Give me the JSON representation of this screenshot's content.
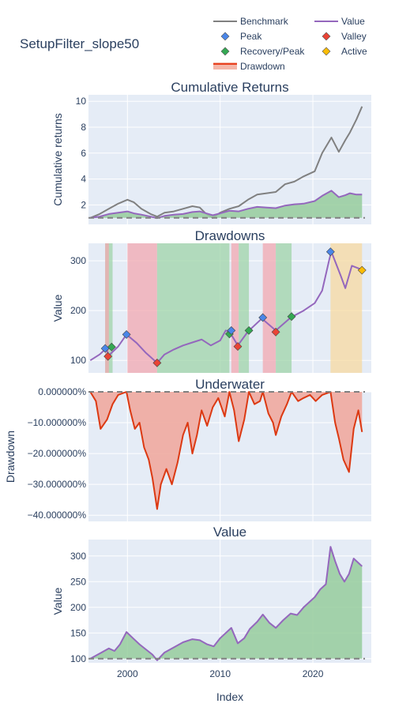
{
  "figure": {
    "title": "SetupFilter_slope50"
  },
  "legend": {
    "items": [
      {
        "label": "Benchmark",
        "kind": "line",
        "color": "#808080"
      },
      {
        "label": "Value",
        "kind": "line",
        "color": "#9467bd"
      },
      {
        "label": "Peak",
        "kind": "diamond",
        "color": "#4a86e8"
      },
      {
        "label": "Valley",
        "kind": "diamond",
        "color": "#ea4335"
      },
      {
        "label": "Recovery/Peak",
        "kind": "diamond",
        "color": "#34a853"
      },
      {
        "label": "Active",
        "kind": "diamond",
        "color": "#fbbc05"
      },
      {
        "label": "Drawdown",
        "kind": "band",
        "color": "#e8411f"
      }
    ]
  },
  "colors": {
    "plot_bg": "#e5ecf6",
    "grid": "#ffffff",
    "text": "#2a3f5f",
    "value": "#9467bd",
    "benchmark": "#808080",
    "fill_green": "#97cd9c",
    "recovery_band": "#9fd4a8",
    "drawdown_band": "#f2a8b0",
    "active_band": "#f7d9a0",
    "underwater": "#dc3912",
    "underwater_fill": "#efaaa0"
  },
  "x_axis": {
    "label": "Index",
    "ticks": [
      "2000",
      "2010",
      "2020"
    ]
  },
  "chart_data": [
    {
      "type": "line",
      "title": "Cumulative Returns",
      "ylabel": "Cumulative returns",
      "ylim": [
        0.5,
        10.5
      ],
      "yticks": [
        2,
        4,
        6,
        8,
        10
      ],
      "ytick_labels": [
        "2",
        "4",
        "6",
        "8",
        "10"
      ],
      "x": [
        1996.0,
        1997.0,
        1998.0,
        1999.0,
        2000.0,
        2000.7,
        2001.5,
        2002.5,
        2003.2,
        2004.0,
        2005.0,
        2006.0,
        2007.0,
        2007.8,
        2008.5,
        2009.2,
        2010.0,
        2011.0,
        2012.0,
        2013.0,
        2014.0,
        2015.0,
        2016.0,
        2017.0,
        2018.0,
        2019.0,
        2020.2,
        2021.0,
        2022.0,
        2022.8,
        2023.5,
        2024.0,
        2024.7,
        2025.3
      ],
      "series": [
        {
          "name": "Benchmark",
          "color": "#808080",
          "values": [
            1.0,
            1.3,
            1.7,
            2.1,
            2.4,
            2.2,
            1.7,
            1.3,
            1.1,
            1.4,
            1.5,
            1.7,
            1.9,
            1.8,
            1.3,
            1.0,
            1.4,
            1.7,
            1.9,
            2.4,
            2.8,
            2.9,
            3.0,
            3.6,
            3.8,
            4.2,
            4.6,
            6.0,
            7.2,
            6.1,
            7.0,
            7.6,
            8.6,
            9.6
          ]
        },
        {
          "name": "Value",
          "color": "#9467bd",
          "values": [
            1.0,
            1.1,
            1.3,
            1.4,
            1.5,
            1.35,
            1.25,
            1.1,
            0.98,
            1.15,
            1.25,
            1.3,
            1.45,
            1.5,
            1.35,
            1.2,
            1.35,
            1.55,
            1.5,
            1.7,
            1.85,
            1.8,
            1.75,
            1.95,
            2.05,
            2.1,
            2.3,
            2.7,
            3.1,
            2.6,
            2.75,
            2.9,
            2.8,
            2.8
          ]
        }
      ],
      "baseline": 1.0
    },
    {
      "type": "line",
      "title": "Drawdowns",
      "ylabel": "Value",
      "ylim": [
        75,
        335
      ],
      "yticks": [
        100,
        200,
        300
      ],
      "ytick_labels": [
        "100",
        "200",
        "300"
      ],
      "x": [
        1996.0,
        1997.0,
        1997.7,
        1998.0,
        1999.0,
        1999.9,
        2001.0,
        2002.0,
        2003.2,
        2004.0,
        2005.0,
        2006.0,
        2007.0,
        2008.0,
        2009.0,
        2010.0,
        2010.6,
        2011.0,
        2011.9,
        2013.0,
        2014.5,
        2016.0,
        2017.6,
        2019.0,
        2020.2,
        2021.0,
        2021.8,
        2022.0,
        2023.0,
        2023.5,
        2024.2,
        2025.3
      ],
      "series": [
        {
          "name": "Value",
          "color": "#9467bd",
          "values": [
            100,
            112,
            124,
            110,
            128,
            152,
            135,
            115,
            95,
            112,
            122,
            130,
            136,
            142,
            130,
            140,
            160,
            158,
            130,
            158,
            184,
            160,
            186,
            200,
            215,
            240,
            305,
            318,
            270,
            245,
            290,
            282
          ]
        }
      ],
      "bands": [
        {
          "kind": "recovery",
          "x0": 1997.6,
          "x1": 1998.4
        },
        {
          "kind": "drawdown",
          "x0": 1997.6,
          "x1": 1998.0
        },
        {
          "kind": "drawdown",
          "x0": 2000.0,
          "x1": 2003.2
        },
        {
          "kind": "recovery",
          "x0": 2003.2,
          "x1": 2011.0
        },
        {
          "kind": "drawdown",
          "x0": 2011.2,
          "x1": 2012.0
        },
        {
          "kind": "recovery",
          "x0": 2012.0,
          "x1": 2013.1
        },
        {
          "kind": "drawdown",
          "x0": 2014.6,
          "x1": 2016.0
        },
        {
          "kind": "recovery",
          "x0": 2016.0,
          "x1": 2017.7
        },
        {
          "kind": "active",
          "x0": 2021.9,
          "x1": 2025.3
        }
      ],
      "markers": [
        {
          "kind": "peak",
          "x": 1997.6,
          "y": 124
        },
        {
          "kind": "valley",
          "x": 1997.9,
          "y": 108
        },
        {
          "kind": "recovery",
          "x": 1998.3,
          "y": 127
        },
        {
          "kind": "peak",
          "x": 1999.9,
          "y": 152
        },
        {
          "kind": "valley",
          "x": 2003.2,
          "y": 95
        },
        {
          "kind": "recovery",
          "x": 2011.0,
          "y": 153
        },
        {
          "kind": "peak",
          "x": 2011.2,
          "y": 160
        },
        {
          "kind": "valley",
          "x": 2011.9,
          "y": 128
        },
        {
          "kind": "recovery",
          "x": 2013.1,
          "y": 160
        },
        {
          "kind": "peak",
          "x": 2014.6,
          "y": 186
        },
        {
          "kind": "valley",
          "x": 2016.0,
          "y": 157
        },
        {
          "kind": "recovery",
          "x": 2017.7,
          "y": 188
        },
        {
          "kind": "peak",
          "x": 2021.9,
          "y": 318
        },
        {
          "kind": "active",
          "x": 2025.3,
          "y": 281
        }
      ]
    },
    {
      "type": "area",
      "title": "Underwater",
      "ylabel": "Drawdown",
      "ylim": [
        -42,
        0
      ],
      "yticks": [
        0,
        -10,
        -20,
        -30,
        -40
      ],
      "ytick_labels": [
        "0.000000%",
        "−10.000000%",
        "−20.000000%",
        "−30.000000%",
        "−40.000000%"
      ],
      "x": [
        1996.0,
        1996.6,
        1997.1,
        1997.8,
        1998.4,
        1999.0,
        1999.9,
        2000.3,
        2000.8,
        2001.3,
        2001.8,
        2002.3,
        2002.7,
        2003.2,
        2003.6,
        2004.2,
        2004.8,
        2005.4,
        2006.0,
        2006.5,
        2007.0,
        2007.5,
        2008.0,
        2008.6,
        2009.2,
        2009.8,
        2010.5,
        2011.0,
        2011.5,
        2012.0,
        2012.6,
        2013.1,
        2013.7,
        2014.3,
        2014.6,
        2015.2,
        2015.7,
        2016.0,
        2016.6,
        2017.2,
        2017.7,
        2018.4,
        2019.0,
        2019.7,
        2020.3,
        2021.0,
        2021.9,
        2022.4,
        2022.8,
        2023.3,
        2023.9,
        2024.4,
        2024.9,
        2025.3
      ],
      "series": [
        {
          "name": "Drawdown",
          "color": "#dc3912",
          "values": [
            0,
            -3,
            -12,
            -9,
            -4,
            -1,
            0,
            -6,
            -12,
            -10,
            -18,
            -22,
            -28,
            -38,
            -30,
            -25,
            -30,
            -23,
            -14,
            -10,
            -20,
            -14,
            -6,
            -11,
            -5,
            -2,
            -8,
            0,
            -6,
            -16,
            -9,
            0,
            -4,
            -3,
            0,
            -7,
            -10,
            -14,
            -8,
            -4,
            0,
            -3,
            -2,
            -1,
            -3,
            -1,
            0,
            -10,
            -15,
            -22,
            -26,
            -12,
            -6,
            -13
          ]
        }
      ]
    },
    {
      "type": "area",
      "title": "Value",
      "ylabel": "Value",
      "ylim": [
        92,
        332
      ],
      "yticks": [
        100,
        150,
        200,
        250,
        300
      ],
      "ytick_labels": [
        "100",
        "150",
        "200",
        "250",
        "300"
      ],
      "x": [
        1996.0,
        1997.0,
        1998.0,
        1998.6,
        1999.2,
        1999.9,
        2000.6,
        2001.3,
        2002.0,
        2002.7,
        2003.2,
        2004.0,
        2005.0,
        2006.0,
        2007.0,
        2007.8,
        2008.6,
        2009.3,
        2010.0,
        2010.6,
        2011.2,
        2011.9,
        2012.6,
        2013.2,
        2014.0,
        2014.6,
        2015.3,
        2016.0,
        2016.8,
        2017.6,
        2018.3,
        2019.0,
        2019.6,
        2020.2,
        2020.8,
        2021.4,
        2021.9,
        2022.4,
        2022.9,
        2023.4,
        2023.9,
        2024.4,
        2025.0,
        2025.3
      ],
      "series": [
        {
          "name": "Value",
          "color": "#9467bd",
          "values": [
            100,
            110,
            120,
            115,
            128,
            152,
            140,
            128,
            118,
            108,
            97,
            112,
            122,
            132,
            138,
            136,
            128,
            124,
            140,
            150,
            160,
            130,
            140,
            158,
            172,
            186,
            170,
            160,
            175,
            188,
            185,
            200,
            210,
            220,
            235,
            245,
            318,
            290,
            265,
            250,
            265,
            295,
            285,
            280
          ]
        }
      ],
      "baseline": 100
    }
  ]
}
